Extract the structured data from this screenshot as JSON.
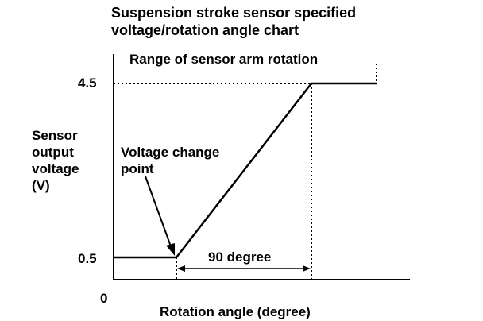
{
  "chart_data": {
    "type": "line",
    "title_lines": [
      "Suspension stroke sensor specified",
      "voltage/rotation angle chart"
    ],
    "range_label": "Range of sensor arm rotation",
    "ylabel_lines": [
      "Sensor",
      "output",
      "voltage",
      "(V)"
    ],
    "xlabel": "Rotation angle (degree)",
    "origin_label": "0",
    "y_ticks": [
      {
        "value": 4.5,
        "label": "4.5"
      },
      {
        "value": 0.5,
        "label": "0.5"
      }
    ],
    "change_point_lines": [
      "Voltage change",
      "point"
    ],
    "span_label": "90 degree",
    "series": [
      {
        "values": [
          [
            0.5,
            0.5
          ],
          [
            1.0,
            0.5
          ],
          [
            1.9,
            4.5
          ],
          [
            2.5,
            4.5
          ]
        ]
      }
    ],
    "colors": {
      "ink": "#000000",
      "background": "#ffffff"
    }
  }
}
